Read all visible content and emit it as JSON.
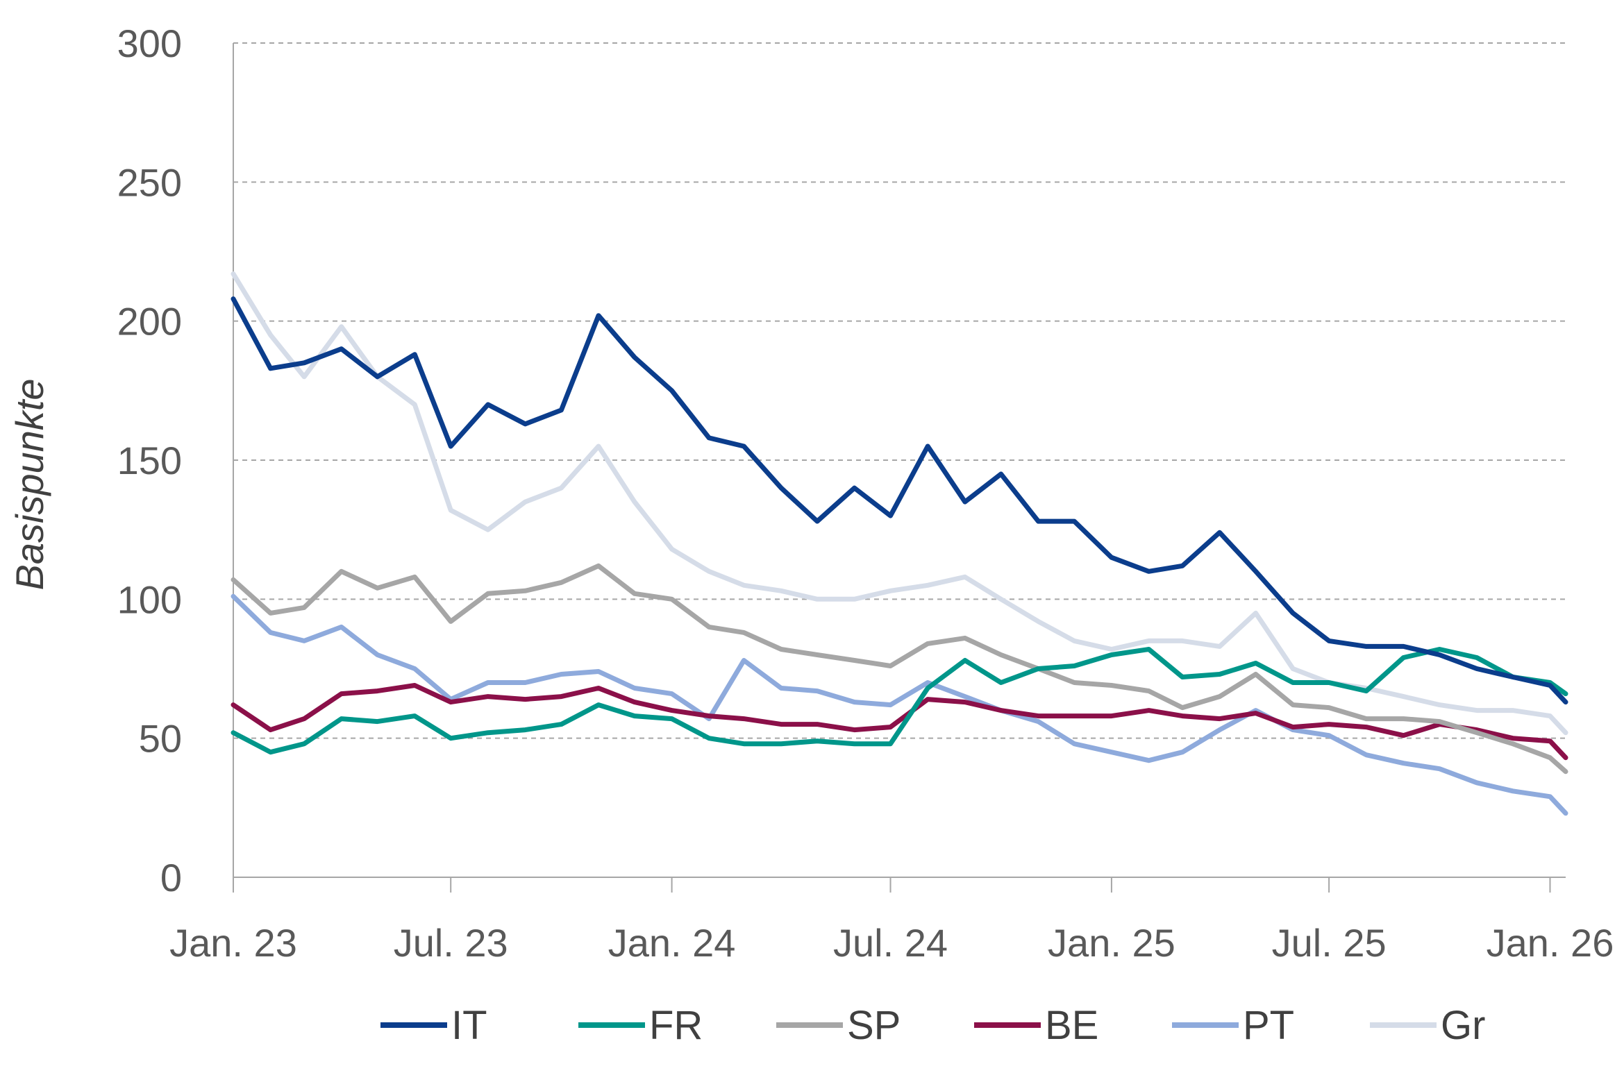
{
  "chart_data": {
    "type": "line",
    "ylabel": "Basispunkte",
    "xlabel": "",
    "ylim": [
      0,
      300
    ],
    "yticks": [
      0,
      50,
      100,
      150,
      200,
      250,
      300
    ],
    "xlim": [
      "2023-01-01",
      "2026-01-14"
    ],
    "xticks": [
      {
        "date": "2023-01-01",
        "label": "Jan. 23"
      },
      {
        "date": "2023-07-01",
        "label": "Jul. 23"
      },
      {
        "date": "2024-01-01",
        "label": "Jan. 24"
      },
      {
        "date": "2024-07-01",
        "label": "Jul. 24"
      },
      {
        "date": "2025-01-01",
        "label": "Jan. 25"
      },
      {
        "date": "2025-07-01",
        "label": "Jul. 25"
      },
      {
        "date": "2026-01-01",
        "label": "Jan. 26"
      }
    ],
    "grid": "horizontal dashed",
    "legend_position": "bottom",
    "x": [
      "2023-01-01",
      "2023-02-01",
      "2023-03-01",
      "2023-04-01",
      "2023-05-01",
      "2023-06-01",
      "2023-07-01",
      "2023-08-01",
      "2023-09-01",
      "2023-10-01",
      "2023-11-01",
      "2023-12-01",
      "2024-01-01",
      "2024-02-01",
      "2024-03-01",
      "2024-04-01",
      "2024-05-01",
      "2024-06-01",
      "2024-07-01",
      "2024-08-01",
      "2024-09-01",
      "2024-10-01",
      "2024-11-01",
      "2024-12-01",
      "2025-01-01",
      "2025-02-01",
      "2025-03-01",
      "2025-04-01",
      "2025-05-01",
      "2025-06-01",
      "2025-07-01",
      "2025-08-01",
      "2025-09-01",
      "2025-10-01",
      "2025-11-01",
      "2025-12-01",
      "2026-01-01",
      "2026-01-14"
    ],
    "series": [
      {
        "name": "IT",
        "color": "#0b3d8c",
        "values": [
          208,
          183,
          185,
          190,
          180,
          188,
          155,
          170,
          163,
          168,
          202,
          187,
          175,
          158,
          155,
          140,
          128,
          140,
          130,
          155,
          135,
          145,
          128,
          128,
          115,
          110,
          112,
          124,
          110,
          95,
          85,
          83,
          83,
          80,
          75,
          72,
          69,
          63
        ]
      },
      {
        "name": "FR",
        "color": "#00968a",
        "values": [
          52,
          45,
          48,
          57,
          56,
          58,
          50,
          52,
          53,
          55,
          62,
          58,
          57,
          50,
          48,
          48,
          49,
          48,
          48,
          68,
          78,
          70,
          75,
          76,
          80,
          82,
          72,
          73,
          77,
          70,
          70,
          67,
          79,
          82,
          79,
          72,
          70,
          66
        ]
      },
      {
        "name": "SP",
        "color": "#a6a6a6",
        "values": [
          107,
          95,
          97,
          110,
          104,
          108,
          92,
          102,
          103,
          106,
          112,
          102,
          100,
          90,
          88,
          82,
          80,
          78,
          76,
          84,
          86,
          80,
          75,
          70,
          69,
          67,
          61,
          65,
          73,
          62,
          61,
          57,
          57,
          56,
          52,
          48,
          43,
          38
        ]
      },
      {
        "name": "BE",
        "color": "#8b1049",
        "values": [
          62,
          53,
          57,
          66,
          67,
          69,
          63,
          65,
          64,
          65,
          68,
          63,
          60,
          58,
          57,
          55,
          55,
          53,
          54,
          64,
          63,
          60,
          58,
          58,
          58,
          60,
          58,
          57,
          59,
          54,
          55,
          54,
          51,
          55,
          53,
          50,
          49,
          43
        ]
      },
      {
        "name": "PT",
        "color": "#8eaadc",
        "values": [
          101,
          88,
          85,
          90,
          80,
          75,
          64,
          70,
          70,
          73,
          74,
          68,
          66,
          57,
          78,
          68,
          67,
          63,
          62,
          70,
          65,
          60,
          56,
          48,
          45,
          42,
          45,
          53,
          60,
          53,
          51,
          44,
          41,
          39,
          34,
          31,
          29,
          23
        ]
      },
      {
        "name": "Gr",
        "color": "#d5dce8",
        "values": [
          217,
          195,
          180,
          198,
          180,
          170,
          132,
          125,
          135,
          140,
          155,
          135,
          118,
          110,
          105,
          103,
          100,
          100,
          103,
          105,
          108,
          100,
          92,
          85,
          82,
          85,
          85,
          83,
          95,
          75,
          70,
          68,
          65,
          62,
          60,
          60,
          58,
          52
        ]
      }
    ]
  }
}
